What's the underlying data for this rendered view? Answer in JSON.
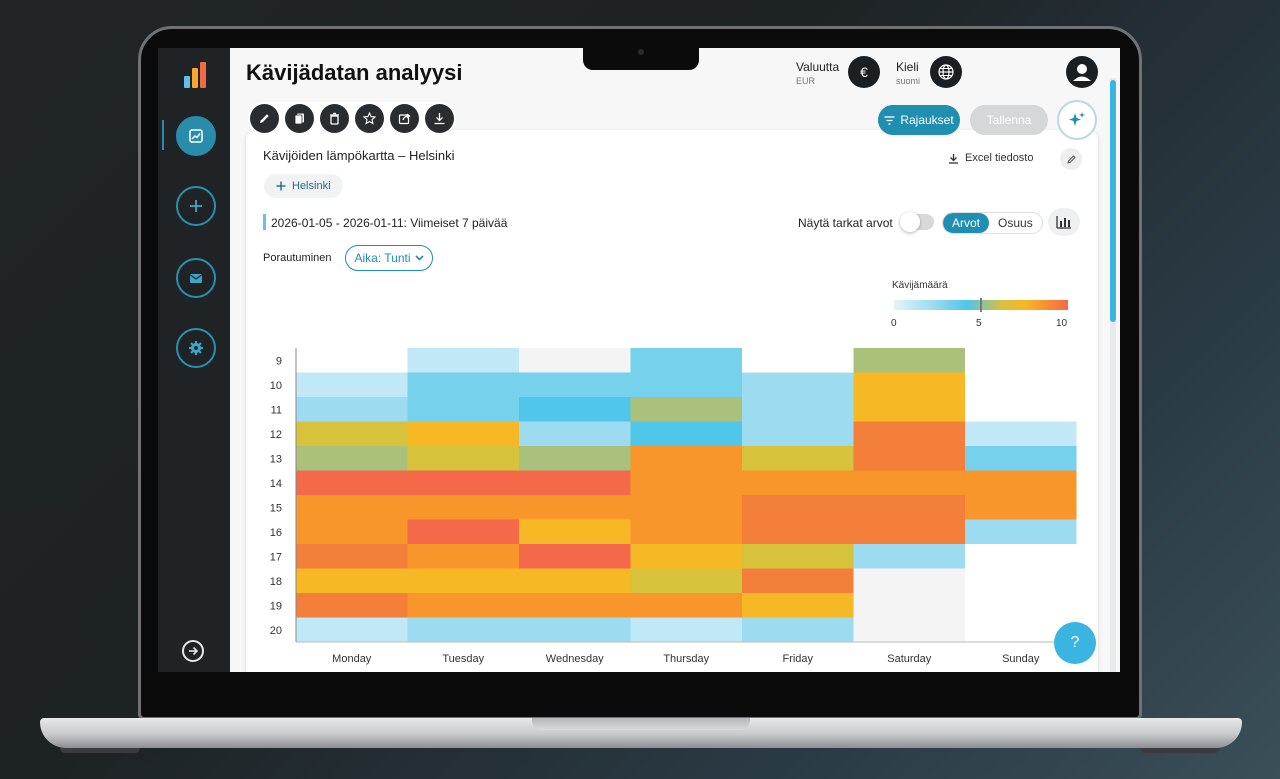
{
  "app": {
    "title": "Kävijädatan analyysi"
  },
  "header": {
    "currency_label": "Valuutta",
    "currency_value": "EUR",
    "currency_icon": "€",
    "language_label": "Kieli",
    "language_value": "suomi"
  },
  "toolbar": {
    "filters_label": "Rajaukset",
    "save_label": "Tallenna",
    "tools": [
      "pencil-icon",
      "copy-icon",
      "trash-icon",
      "star-icon",
      "share-icon",
      "download-icon"
    ]
  },
  "sidebar": {
    "items": [
      "chart-icon",
      "plus-icon",
      "mail-icon",
      "gear-icon"
    ]
  },
  "card": {
    "title": "Kävijöiden lämpökartta – Helsinki",
    "excel_label": "Excel tiedosto",
    "chip_label": "Helsinki",
    "date_range": "2026-01-05 - 2026-01-11: Viimeiset 7 päivää",
    "show_exact_label": "Näytä tarkat arvot",
    "seg_values": "Arvot",
    "seg_share": "Osuus",
    "drill_label": "Porautuminen",
    "drill_value": "Aika: Tunti"
  },
  "legend": {
    "title": "Kävijämäärä",
    "min": "0",
    "mid": "5",
    "max": "10"
  },
  "help_label": "?",
  "colors": {
    "accent": "#1f8eb0",
    "sidebar": "#1f2326"
  },
  "chart_data": {
    "type": "heatmap",
    "x_categories": [
      "Monday",
      "Tuesday",
      "Wednesday",
      "Thursday",
      "Friday",
      "Saturday",
      "Sunday"
    ],
    "y_categories": [
      "9",
      "10",
      "11",
      "12",
      "13",
      "14",
      "15",
      "16",
      "17",
      "18",
      "19",
      "20"
    ],
    "value_range": [
      0,
      10
    ],
    "values": [
      [
        null,
        1,
        0,
        3,
        null,
        5,
        null
      ],
      [
        1,
        3,
        3,
        3,
        2,
        7,
        null
      ],
      [
        2,
        3,
        4,
        5,
        2,
        7,
        null
      ],
      [
        6,
        7,
        2,
        4,
        2,
        9,
        1
      ],
      [
        5,
        6,
        5,
        8,
        6,
        9,
        3
      ],
      [
        10,
        10,
        10,
        8,
        8,
        8,
        8
      ],
      [
        8,
        8,
        8,
        8,
        9,
        9,
        8
      ],
      [
        8,
        10,
        7,
        8,
        9,
        9,
        2
      ],
      [
        9,
        8,
        10,
        7,
        6,
        2,
        null
      ],
      [
        7,
        7,
        7,
        6,
        9,
        0,
        null
      ],
      [
        9,
        8,
        8,
        8,
        7,
        0,
        null
      ],
      [
        1,
        2,
        2,
        1,
        2,
        0,
        null
      ]
    ]
  }
}
